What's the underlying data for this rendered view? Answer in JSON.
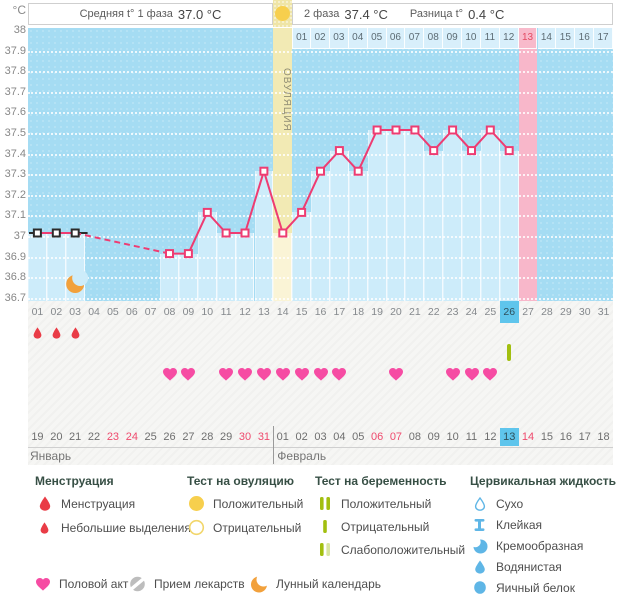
{
  "header": {
    "phase1_label": "Средняя t° 1 фаза",
    "phase1_value": "37.0 °C",
    "phase2_label": "2 фаза",
    "phase2_value": "37.4 °C",
    "diff_label": "Разница t°",
    "diff_value": "0.4 °C",
    "ovulation_label": "ОВУЛЯЦИЯ"
  },
  "chart_data": {
    "type": "line",
    "unit": "°C",
    "ylim": [
      36.7,
      38.0
    ],
    "yticks": [
      "38",
      "37.9",
      "37.8",
      "37.7",
      "37.6",
      "37.5",
      "37.4",
      "37.3",
      "37.2",
      "37.1",
      "37",
      "36.9",
      "36.8",
      "36.7"
    ],
    "day_numbers": [
      "01",
      "02",
      "03",
      "04",
      "05",
      "06",
      "07",
      "08",
      "09",
      "10",
      "11",
      "12",
      "13",
      "14",
      "15",
      "16",
      "17",
      "18",
      "19",
      "20",
      "21",
      "22",
      "23",
      "24",
      "25",
      "26",
      "27",
      "28",
      "29",
      "30",
      "31"
    ],
    "temperatures": [
      {
        "day": 1,
        "temp": 37.0
      },
      {
        "day": 2,
        "temp": 37.0
      },
      {
        "day": 3,
        "temp": 37.0
      },
      {
        "day": 8,
        "temp": 36.9
      },
      {
        "day": 9,
        "temp": 36.9
      },
      {
        "day": 10,
        "temp": 37.1
      },
      {
        "day": 11,
        "temp": 37.0
      },
      {
        "day": 12,
        "temp": 37.0
      },
      {
        "day": 13,
        "temp": 37.3
      },
      {
        "day": 14,
        "temp": 37.0
      },
      {
        "day": 15,
        "temp": 37.1
      },
      {
        "day": 16,
        "temp": 37.3
      },
      {
        "day": 17,
        "temp": 37.4
      },
      {
        "day": 18,
        "temp": 37.3
      },
      {
        "day": 19,
        "temp": 37.5
      },
      {
        "day": 20,
        "temp": 37.5
      },
      {
        "day": 21,
        "temp": 37.5
      },
      {
        "day": 22,
        "temp": 37.4
      },
      {
        "day": 23,
        "temp": 37.5
      },
      {
        "day": 24,
        "temp": 37.4
      },
      {
        "day": 25,
        "temp": 37.5
      },
      {
        "day": 26,
        "temp": 37.4
      }
    ],
    "dashed_gap": [
      3,
      8
    ],
    "phase1_marker_days": [
      1,
      2,
      3
    ],
    "ovulation_day": 14,
    "pink_column_day": 27,
    "today_day": 26,
    "dpo_labels": [
      "01",
      "02",
      "03",
      "04",
      "05",
      "06",
      "07",
      "08",
      "09",
      "10",
      "11",
      "12",
      "13",
      "14",
      "15",
      "16",
      "17"
    ],
    "dpo_start_day": 15,
    "dpo_highlight": "13",
    "moon_day": 3,
    "menstruation_days": [
      1,
      2,
      3
    ],
    "intercourse_days": [
      8,
      9,
      11,
      12,
      13,
      14,
      15,
      16,
      17,
      20,
      23,
      24,
      25
    ],
    "pregnancy_test_negative_days": [
      26
    ],
    "calendar_months": [
      {
        "name": "Январь",
        "start_col": 1,
        "dates": [
          "19",
          "20",
          "21",
          "22",
          "23",
          "24",
          "25",
          "26",
          "27",
          "28",
          "29",
          "30",
          "31"
        ],
        "red_dates": [
          "23",
          "24",
          "30",
          "31"
        ],
        "today_date": ""
      },
      {
        "name": "Февраль",
        "start_col": 14,
        "dates": [
          "01",
          "02",
          "03",
          "04",
          "05",
          "06",
          "07",
          "08",
          "09",
          "10",
          "11",
          "12",
          "13",
          "14",
          "15",
          "16",
          "17",
          "18"
        ],
        "red_dates": [
          "06",
          "07",
          "14"
        ],
        "today_date": "13"
      }
    ]
  },
  "legend": {
    "sections": [
      {
        "title": "Менструация",
        "items": [
          {
            "icon": "drop-large",
            "label": "Менструация"
          },
          {
            "icon": "drop-small",
            "label": "Небольшие выделения"
          }
        ]
      },
      {
        "title": "Тест на овуляцию",
        "items": [
          {
            "icon": "ovu-pos",
            "label": "Положительный"
          },
          {
            "icon": "ovu-neg",
            "label": "Отрицательный"
          }
        ]
      },
      {
        "title": "Тест на беременность",
        "items": [
          {
            "icon": "preg-pos",
            "label": "Положительный"
          },
          {
            "icon": "preg-neg",
            "label": "Отрицательный"
          },
          {
            "icon": "preg-weak",
            "label": "Слабоположительный"
          }
        ]
      },
      {
        "title": "Цервикальная жидкость",
        "items": [
          {
            "icon": "cf-dry",
            "label": "Сухо"
          },
          {
            "icon": "cf-sticky",
            "label": "Клейкая"
          },
          {
            "icon": "cf-creamy",
            "label": "Кремообразная"
          },
          {
            "icon": "cf-watery",
            "label": "Водянистая"
          },
          {
            "icon": "cf-eggwhite",
            "label": "Яичный белок"
          }
        ]
      }
    ],
    "bottom_items": [
      {
        "icon": "heart",
        "label": "Половой акт"
      },
      {
        "icon": "pill",
        "label": "Прием лекарств"
      },
      {
        "icon": "moon",
        "label": "Лунный календарь"
      }
    ]
  },
  "colors": {
    "chart_bg": "#a5dcf3",
    "column_fill": "#cdecfa",
    "ovulation_band": "#f2eab4",
    "ovulation_band_light": "#faf4d6",
    "pink_column": "#f8b7ca",
    "line": "#ee3c72",
    "phase1_marker": "#2b2b2b",
    "today_highlight": "#5fc5ec",
    "heart": "#f64ca3",
    "drop": "#e93c46",
    "moon": "#f2a13c",
    "ovulation_test": "#f7cf4d",
    "pregnancy_bar": "#a2bf10",
    "pregnancy_bar_pale": "#d9e5a2",
    "fluid_blue": "#5fb6e6",
    "pill_gray": "#bdbdbd",
    "red_date": "#ef4a6d"
  }
}
